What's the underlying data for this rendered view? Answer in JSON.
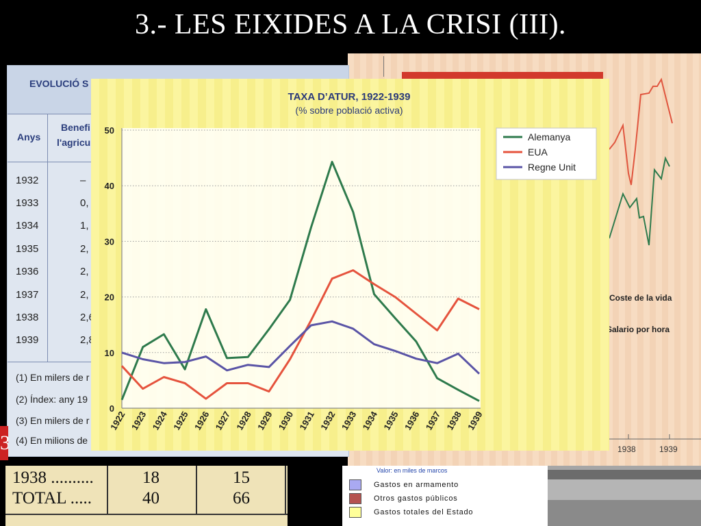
{
  "slide": {
    "title": "3.- LES EIXIDES A LA CRISI (III)."
  },
  "bg_table": {
    "title": "EVOLUCIÓ S",
    "col_anys": "Anys",
    "col_benef_1": "Benefi",
    "col_benef_2": "l'agricu",
    "rows": [
      {
        "year": "1932",
        "value": "–"
      },
      {
        "year": "1933",
        "value": "0,"
      },
      {
        "year": "1934",
        "value": "1,"
      },
      {
        "year": "1935",
        "value": "2,"
      },
      {
        "year": "1936",
        "value": "2,"
      },
      {
        "year": "1937",
        "value": "2,"
      },
      {
        "year": "1938",
        "value": "2,6"
      },
      {
        "year": "1939",
        "value": "2,8"
      }
    ],
    "notes": [
      "(1) En milers de r",
      "(2) Índex: any 19",
      "(3) En milers de r",
      "(4) En milions de"
    ],
    "badge": "3"
  },
  "bg_right": {
    "cost_label": "Coste de la vida",
    "wage_label": "Salario por hora",
    "years": [
      "1938",
      "1939"
    ]
  },
  "bottom_table": {
    "rows": [
      {
        "label": "1938 ..........",
        "a": "18",
        "b": "15"
      },
      {
        "label": "TOTAL .....",
        "a": "40",
        "b": "66"
      }
    ]
  },
  "bottom_legend": {
    "title": "Valor: en miles de marcos",
    "items": [
      {
        "label": "Gastos en armamento",
        "color": "#a9a9f2"
      },
      {
        "label": "Otros gastos públicos",
        "color": "#b5524f"
      },
      {
        "label": "Gastos totales del Estado",
        "color": "#ffff99"
      }
    ]
  },
  "chart_data": {
    "type": "line",
    "title": "TAXA D’ATUR, 1922-1939",
    "subtitle": "(% sobre població activa)",
    "x": [
      "1922",
      "1923",
      "1924",
      "1925",
      "1926",
      "1927",
      "1928",
      "1929",
      "1930",
      "1931",
      "1932",
      "1933",
      "1934",
      "1935",
      "1936",
      "1937",
      "1938",
      "1939"
    ],
    "ylim": [
      0,
      50
    ],
    "yticks": [
      0,
      10,
      20,
      30,
      40,
      50
    ],
    "grid": true,
    "legend_position": "top-right",
    "series": [
      {
        "name": "Alemanya",
        "color": "#2e7a4c",
        "values": [
          1.5,
          11,
          13.3,
          7,
          17.8,
          9,
          9.2,
          14.2,
          19.5,
          32.5,
          44.3,
          35.3,
          20.5,
          16.2,
          12,
          5.4,
          3.3,
          1.3
        ]
      },
      {
        "name": "EUA",
        "color": "#e5533d",
        "values": [
          7.6,
          3.5,
          5.6,
          4.5,
          1.7,
          4.5,
          4.5,
          3,
          8.8,
          15.8,
          23.3,
          24.8,
          22.3,
          20,
          17,
          14,
          19.7,
          17.8
        ]
      },
      {
        "name": "Regne Unit",
        "color": "#5a54a6",
        "values": [
          10,
          8.8,
          8.1,
          8.3,
          9.3,
          6.8,
          7.8,
          7.4,
          11.2,
          14.9,
          15.6,
          14.3,
          11.5,
          10.3,
          8.9,
          8.1,
          9.8,
          6.2
        ]
      }
    ]
  }
}
